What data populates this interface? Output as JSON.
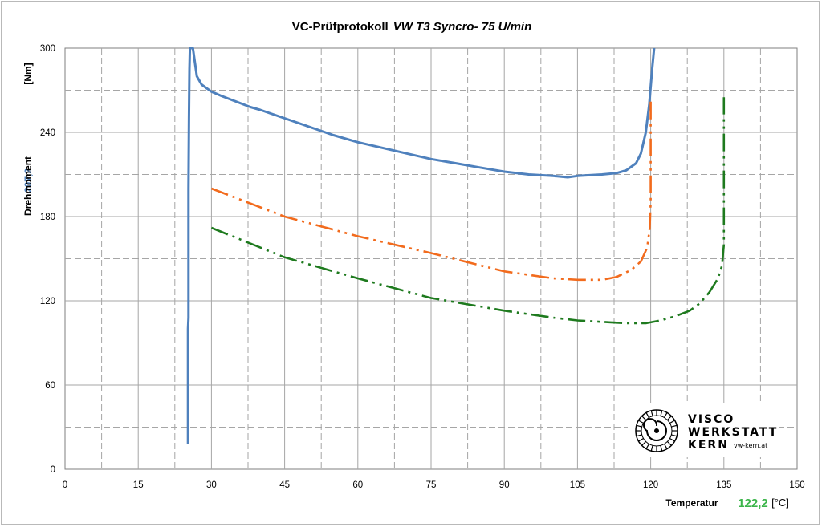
{
  "chart_data": {
    "type": "line",
    "title": "VC-Prüfprotokoll",
    "title_italic": "VW T3 Syncro- 75 U/min",
    "ylabel": "Drehmoment",
    "ylabel_unit": "[Nm]",
    "ylabel_value": "207,2",
    "xlabel": "Temperatur",
    "xlabel_value": "122,2",
    "xlabel_unit": "[°C]",
    "xlim": [
      0,
      150
    ],
    "ylim": [
      0,
      300
    ],
    "x_ticks": [
      0,
      15,
      30,
      45,
      60,
      75,
      90,
      105,
      120,
      135,
      150
    ],
    "y_ticks": [
      0,
      60,
      120,
      180,
      240,
      300
    ],
    "x_minor_grid": [
      7.5,
      22.5,
      37.5,
      52.5,
      67.5,
      82.5,
      97.5,
      112.5,
      127.5,
      142.5
    ],
    "y_minor_grid": [
      30,
      90,
      150,
      210,
      270
    ],
    "grid": true,
    "colors": {
      "measured": "#4f81bd",
      "upper": "#f26b1d",
      "lower": "#1e7a1e",
      "grid": "#a6a6a6",
      "ylabel_value": "#4f81bd",
      "xlabel_value": "#3bb54a"
    },
    "series": [
      {
        "key": "measured",
        "style": "solid",
        "points": [
          [
            25.2,
            18
          ],
          [
            25.2,
            60
          ],
          [
            25.2,
            100
          ],
          [
            25.3,
            108
          ],
          [
            25.3,
            200
          ],
          [
            25.4,
            250
          ],
          [
            25.5,
            285
          ],
          [
            25.6,
            300
          ],
          [
            26.2,
            300
          ],
          [
            27,
            280
          ],
          [
            28,
            274
          ],
          [
            30,
            269
          ],
          [
            32,
            266
          ],
          [
            35,
            262
          ],
          [
            38,
            258
          ],
          [
            40,
            256
          ],
          [
            45,
            250
          ],
          [
            50,
            244
          ],
          [
            55,
            238
          ],
          [
            60,
            233
          ],
          [
            65,
            229
          ],
          [
            70,
            225
          ],
          [
            75,
            221
          ],
          [
            80,
            218
          ],
          [
            85,
            215
          ],
          [
            90,
            212
          ],
          [
            95,
            210
          ],
          [
            100,
            209
          ],
          [
            103,
            208
          ],
          [
            105,
            209
          ],
          [
            110,
            210
          ],
          [
            113,
            211
          ],
          [
            115,
            213
          ],
          [
            117,
            218
          ],
          [
            118,
            225
          ],
          [
            119,
            240
          ],
          [
            119.7,
            260
          ],
          [
            120.3,
            285
          ],
          [
            120.7,
            300
          ]
        ]
      },
      {
        "key": "upper",
        "style": "dash-dot-dot",
        "points": [
          [
            30,
            200
          ],
          [
            45,
            180
          ],
          [
            60,
            166
          ],
          [
            75,
            154
          ],
          [
            90,
            141
          ],
          [
            100,
            136
          ],
          [
            105,
            135
          ],
          [
            110,
            135
          ],
          [
            113,
            137
          ],
          [
            116,
            142
          ],
          [
            118,
            148
          ],
          [
            119.3,
            158
          ],
          [
            119.8,
            172
          ],
          [
            120,
            190
          ],
          [
            120,
            220
          ],
          [
            120,
            265
          ]
        ]
      },
      {
        "key": "lower",
        "style": "dash-dot-dot",
        "points": [
          [
            30,
            172
          ],
          [
            45,
            151
          ],
          [
            60,
            136
          ],
          [
            75,
            122
          ],
          [
            90,
            113
          ],
          [
            100,
            108
          ],
          [
            105,
            106
          ],
          [
            110,
            105
          ],
          [
            115,
            104
          ],
          [
            119,
            104
          ],
          [
            122,
            106
          ],
          [
            125,
            109
          ],
          [
            128,
            113
          ],
          [
            130,
            118
          ],
          [
            132,
            126
          ],
          [
            133.8,
            136
          ],
          [
            134.6,
            145
          ],
          [
            135,
            160
          ],
          [
            135,
            200
          ],
          [
            135,
            265
          ]
        ]
      }
    ]
  },
  "logo": {
    "line1": "VISCO",
    "line2": "WERKSTATT",
    "line3": "KERN",
    "url": "vw-kern.at"
  }
}
